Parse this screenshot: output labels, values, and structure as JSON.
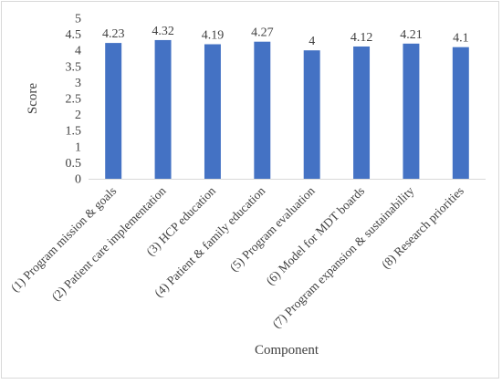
{
  "chart_data": {
    "type": "bar",
    "title": "",
    "xlabel": "Component",
    "ylabel": "Score",
    "ylim": [
      0,
      5
    ],
    "yticks": [
      0,
      0.5,
      1,
      1.5,
      2,
      2.5,
      3,
      3.5,
      4,
      4.5,
      5
    ],
    "ytick_labels": [
      "0",
      "0.5",
      "1",
      "1.5",
      "2",
      "2.5",
      "3",
      "3.5",
      "4",
      "4.5",
      "5"
    ],
    "grid": false,
    "legend": "none",
    "categories": [
      "(1) Program mission & goals",
      "(2) Patient care implementation",
      "(3) HCP education",
      "(4) Patient & family education",
      "(5) Program evaluation",
      "(6) Model for MDT boards",
      "(7) Program expansion & sustainability",
      "(8) Research priorities"
    ],
    "values": [
      4.23,
      4.32,
      4.19,
      4.27,
      4,
      4.12,
      4.21,
      4.1
    ],
    "data_labels": [
      "4.23",
      "4.32",
      "4.19",
      "4.27",
      "4",
      "4.12",
      "4.21",
      "4.1"
    ],
    "bar_color": "#4472c4",
    "axis_color": "#d9d9d9",
    "text_color": "#404040"
  }
}
